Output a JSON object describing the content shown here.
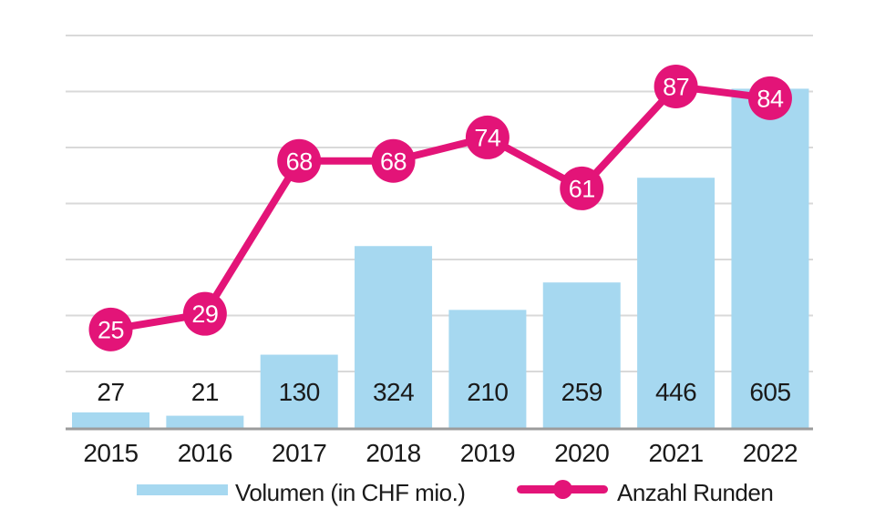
{
  "colors": {
    "bar": "#A6D8F0",
    "line": "#E31478",
    "gridline": "#D9D9D9",
    "axis": "#9C9C9C",
    "text": "#1A1A1A",
    "marker_text": "#FFFFFF",
    "background": "#FFFFFF"
  },
  "legend": {
    "volume_label": "Volumen (in CHF mio.)",
    "rounds_label": "Anzahl Runden"
  },
  "chart_data": {
    "type": "bar",
    "subtype": "bar-and-line-combo",
    "title": "",
    "xlabel": "",
    "ylabel": "",
    "categories": [
      "2015",
      "2016",
      "2017",
      "2018",
      "2019",
      "2020",
      "2021",
      "2022"
    ],
    "series": [
      {
        "name": "Volumen (in CHF mio.)",
        "type": "bar",
        "values": [
          27,
          21,
          130,
          324,
          210,
          259,
          446,
          605
        ],
        "color": "#A6D8F0"
      },
      {
        "name": "Anzahl Runden",
        "type": "line",
        "values": [
          25,
          29,
          68,
          68,
          74,
          61,
          87,
          84
        ],
        "color": "#E31478"
      }
    ],
    "bar_axis": {
      "min": 0,
      "max": 700,
      "gridline_step": 100
    },
    "line_axis": {
      "min": 0,
      "max": 100
    },
    "grid": true,
    "axis_tick_labels_shown": false,
    "value_labels_shown": true,
    "legend_position": "bottom"
  }
}
